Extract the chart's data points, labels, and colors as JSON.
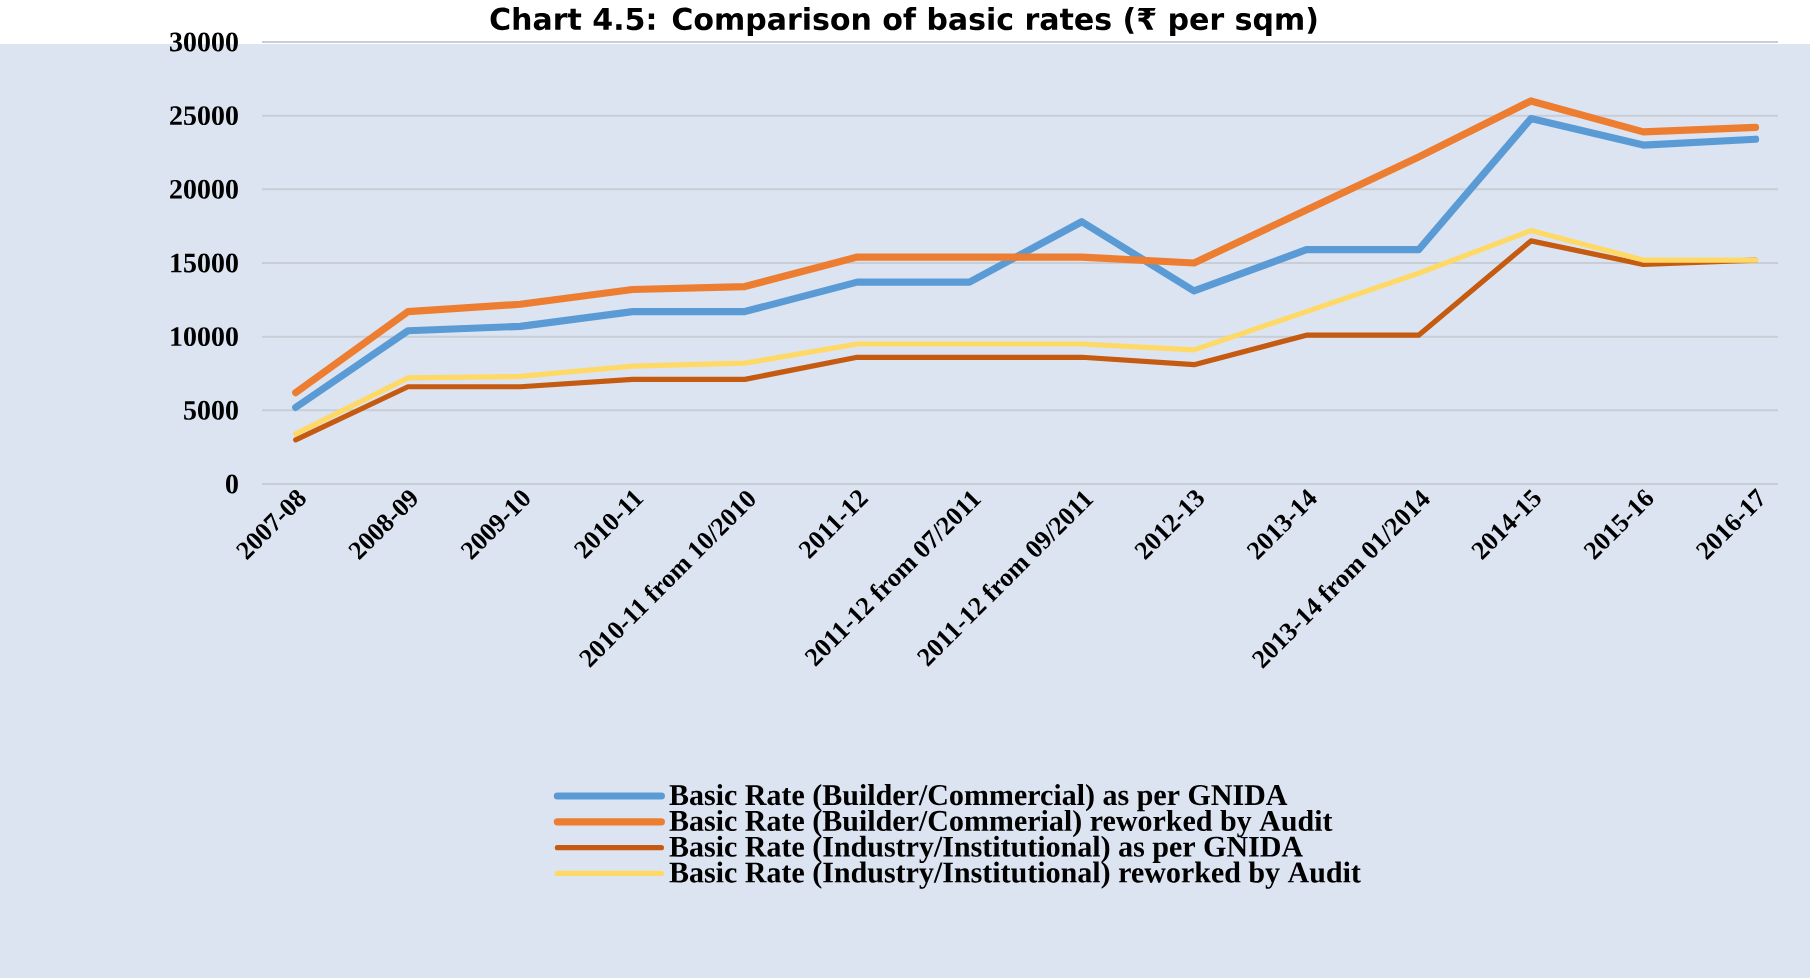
{
  "chart_data": {
    "type": "line",
    "title": "Chart 4.5: Comparison of basic rates (₹ per sqm)",
    "categories": [
      "2007-08",
      "2008-09",
      "2009-10",
      "2010-11",
      "2010-11 from 10/2010",
      "2011-12",
      "2011-12 from 07/2011",
      "2011-12 from 09/2011",
      "2012-13",
      "2013-14",
      "2013-14 from 01/2014",
      "2014-15",
      "2015-16",
      "2016-17"
    ],
    "series": [
      {
        "name": "Basic Rate (Builder/Commercial) as per GNIDA",
        "color": "#5b9bd5",
        "values": [
          5200,
          10400,
          10700,
          11700,
          11700,
          13700,
          13700,
          17800,
          13100,
          15900,
          15900,
          24800,
          23000,
          23400
        ]
      },
      {
        "name": "Basic Rate (Builder/Commerial) reworked by Audit",
        "color": "#ed7d31",
        "values": [
          6200,
          11700,
          12200,
          13200,
          13400,
          15400,
          15400,
          15400,
          15000,
          18600,
          22200,
          26000,
          23900,
          24200
        ]
      },
      {
        "name": "Basic Rate (Industry/Institutional) as per GNIDA",
        "color": "#c55a11",
        "values": [
          3000,
          6600,
          6600,
          7100,
          7100,
          8600,
          8600,
          8600,
          8100,
          10100,
          10100,
          16500,
          14900,
          15200
        ]
      },
      {
        "name": "Basic Rate (Industry/Institutional) reworked by Audit",
        "color": "#ffd966",
        "values": [
          3400,
          7200,
          7300,
          8000,
          8200,
          9500,
          9500,
          9500,
          9100,
          11700,
          14300,
          17200,
          15200,
          15200
        ]
      }
    ],
    "ylim": [
      0,
      30000
    ],
    "yticks": [
      0,
      5000,
      10000,
      15000,
      20000,
      25000,
      30000
    ],
    "grid": "y",
    "legend": "bottom"
  }
}
